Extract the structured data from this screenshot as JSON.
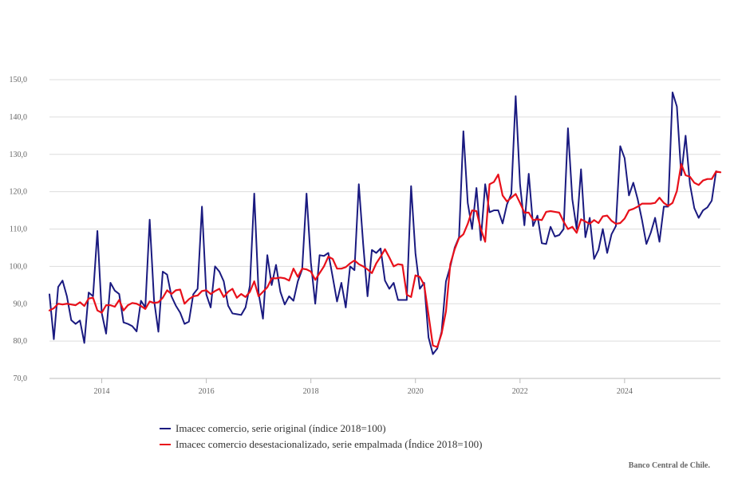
{
  "chart_data": {
    "type": "line",
    "title": "",
    "xlabel": "",
    "ylabel": "",
    "ylim": [
      70,
      150
    ],
    "xlim": [
      2013.0,
      2025.833
    ],
    "y_ticks": [
      "70,0",
      "80,0",
      "90,0",
      "100,0",
      "110,0",
      "120,0",
      "130,0",
      "140,0",
      "150,0"
    ],
    "x_ticks": [
      "2014",
      "2016",
      "2018",
      "2020",
      "2022",
      "2024"
    ],
    "grid": "horizontal",
    "start": "2013-01",
    "frequency": "monthly",
    "series": [
      {
        "name": "Imacec comercio, serie original (índice 2018=100)",
        "color": "#1a1a80",
        "values": [
          92.5,
          80.5,
          94.5,
          96.2,
          92.0,
          85.6,
          84.6,
          85.5,
          79.5,
          93.0,
          92.0,
          109.5,
          87.5,
          82.0,
          95.6,
          93.5,
          92.6,
          85.0,
          84.6,
          84.0,
          82.6,
          90.8,
          89.0,
          112.5,
          91.0,
          82.5,
          98.6,
          97.8,
          92.0,
          89.5,
          87.6,
          84.6,
          85.2,
          92.5,
          94.0,
          116.0,
          92.5,
          89.0,
          100.0,
          98.6,
          96.0,
          89.5,
          87.4,
          87.2,
          87.0,
          89.0,
          94.8,
          119.5,
          92.8,
          86.0,
          103.0,
          95.0,
          100.4,
          93.2,
          89.8,
          92.0,
          90.8,
          96.0,
          99.2,
          119.5,
          101.0,
          90.0,
          103.0,
          102.8,
          103.6,
          97.2,
          90.6,
          95.6,
          89.0,
          100.0,
          99.0,
          122.0,
          106.0,
          92.0,
          104.4,
          103.6,
          104.8,
          96.2,
          94.0,
          95.6,
          91.0,
          91.0,
          91.0,
          121.5,
          103.5,
          94.0,
          95.6,
          81.0,
          76.5,
          78.0,
          82.5,
          96.0,
          100.0,
          105.0,
          107.8,
          136.2,
          117.0,
          110.0,
          121.0,
          107.0,
          122.0,
          114.5,
          115.0,
          115.0,
          111.5,
          116.6,
          119.4,
          145.6,
          122.0,
          111.0,
          124.8,
          110.8,
          113.6,
          106.2,
          106.0,
          110.6,
          108.0,
          108.4,
          110.0,
          137.0,
          118.0,
          110.0,
          126.0,
          107.8,
          113.0,
          102.0,
          104.4,
          110.0,
          103.6,
          108.6,
          110.8,
          132.2,
          129.0,
          119.0,
          122.4,
          118.0,
          112.4,
          106.0,
          109.0,
          113.0,
          106.6,
          116.0,
          116.0,
          146.6,
          142.8,
          124.4,
          135.0,
          122.0,
          115.6,
          113.0,
          115.0,
          115.8,
          117.6,
          125.5
        ]
      },
      {
        "name": "Imacec comercio desestacionalizado, serie empalmada (Índice 2018=100)",
        "color": "#e8101a",
        "values": [
          88.2,
          88.8,
          90.0,
          89.8,
          90.0,
          89.8,
          89.6,
          90.4,
          89.4,
          91.4,
          91.6,
          88.2,
          87.6,
          89.6,
          89.6,
          89.2,
          91.0,
          88.2,
          89.6,
          90.2,
          90.0,
          89.4,
          88.6,
          90.6,
          90.2,
          90.4,
          91.6,
          93.6,
          92.6,
          93.6,
          93.8,
          90.0,
          91.2,
          92.0,
          92.2,
          93.4,
          93.6,
          92.6,
          93.4,
          94.0,
          91.8,
          93.2,
          94.0,
          91.6,
          92.6,
          91.8,
          93.2,
          96.0,
          92.0,
          93.2,
          94.4,
          96.8,
          96.8,
          97.0,
          96.8,
          96.2,
          99.4,
          97.2,
          99.4,
          99.2,
          98.6,
          96.4,
          98.2,
          100.0,
          102.6,
          102.0,
          99.4,
          99.4,
          99.8,
          100.8,
          101.6,
          100.6,
          100.0,
          99.2,
          98.2,
          100.8,
          102.6,
          104.6,
          102.4,
          100.0,
          100.6,
          100.4,
          92.4,
          91.8,
          97.6,
          97.2,
          95.0,
          87.0,
          78.8,
          78.4,
          82.0,
          88.0,
          100.6,
          104.6,
          107.6,
          108.6,
          111.4,
          115.0,
          114.8,
          110.0,
          106.6,
          122.0,
          122.6,
          124.6,
          119.0,
          117.4,
          118.4,
          119.4,
          117.0,
          114.4,
          114.4,
          112.4,
          112.6,
          112.4,
          114.6,
          114.8,
          114.6,
          114.4,
          112.0,
          110.0,
          110.6,
          109.0,
          112.6,
          112.0,
          111.4,
          112.4,
          111.6,
          113.4,
          113.6,
          112.2,
          111.4,
          111.6,
          112.8,
          115.0,
          115.4,
          116.0,
          116.8,
          116.8,
          116.8,
          117.0,
          118.4,
          117.0,
          116.2,
          117.0,
          120.2,
          127.4,
          124.4,
          124.0,
          122.4,
          121.8,
          123.0,
          123.4,
          123.4,
          125.4,
          125.2
        ]
      }
    ]
  },
  "legend": {
    "items": [
      {
        "label": "Imacec comercio, serie original (índice 2018=100)",
        "color": "#1a1a80"
      },
      {
        "label": "Imacec comercio desestacionalizado, serie empalmada (Índice 2018=100)",
        "color": "#e8101a"
      }
    ]
  },
  "footer": {
    "source": "Banco Central de Chile."
  }
}
